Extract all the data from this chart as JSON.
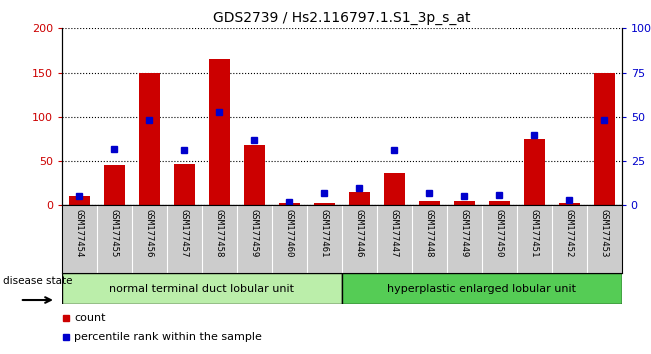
{
  "title": "GDS2739 / Hs2.116797.1.S1_3p_s_at",
  "categories": [
    "GSM177454",
    "GSM177455",
    "GSM177456",
    "GSM177457",
    "GSM177458",
    "GSM177459",
    "GSM177460",
    "GSM177461",
    "GSM177446",
    "GSM177447",
    "GSM177448",
    "GSM177449",
    "GSM177450",
    "GSM177451",
    "GSM177452",
    "GSM177453"
  ],
  "counts": [
    10,
    45,
    150,
    47,
    165,
    68,
    3,
    3,
    15,
    37,
    5,
    5,
    5,
    75,
    3,
    150
  ],
  "percentiles": [
    5,
    32,
    48,
    31,
    53,
    37,
    2,
    7,
    10,
    31,
    7,
    5,
    6,
    40,
    3,
    48
  ],
  "group1_label": "normal terminal duct lobular unit",
  "group2_label": "hyperplastic enlarged lobular unit",
  "group1_count": 8,
  "group2_count": 8,
  "ylim_left": [
    0,
    200
  ],
  "ylim_right": [
    0,
    100
  ],
  "yticks_left": [
    0,
    50,
    100,
    150,
    200
  ],
  "yticks_right": [
    0,
    25,
    50,
    75,
    100
  ],
  "ytick_labels_right": [
    "0",
    "25",
    "50",
    "75",
    "100%"
  ],
  "bar_color": "#cc0000",
  "dot_color": "#0000cc",
  "group1_bg": "#bbeeaa",
  "group2_bg": "#55cc55",
  "tick_area_bg": "#cccccc",
  "legend_count_color": "#cc0000",
  "legend_pct_color": "#0000cc",
  "disease_state_label": "disease state",
  "ylabel_left_color": "#cc0000",
  "ylabel_right_color": "#0000cc",
  "bar_width": 0.6
}
